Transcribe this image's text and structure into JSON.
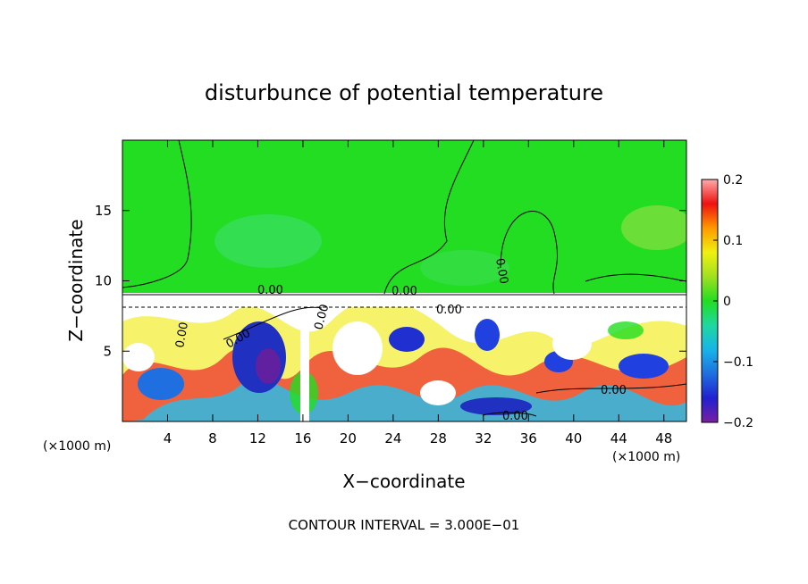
{
  "chart_data": {
    "type": "heatmap",
    "title": "disturbunce of potential temperature",
    "xlabel": "X−coordinate",
    "ylabel": "Z−coordinate",
    "x_unit_left": "(×1000 m)",
    "x_unit_right": "(×1000 m)",
    "xlim": [
      0,
      50
    ],
    "ylim": [
      0,
      20
    ],
    "x_ticks": [
      "4",
      "8",
      "12",
      "16",
      "20",
      "24",
      "28",
      "32",
      "36",
      "40",
      "44",
      "48"
    ],
    "y_ticks": [
      "5",
      "10",
      "15"
    ],
    "colorbar": {
      "range": [
        -0.2,
        0.2
      ],
      "tick_labels": [
        "0.2",
        "0.1",
        "0",
        "−0.1",
        "−0.2"
      ]
    },
    "contour_labels": [
      "0.00",
      "0.00",
      "0.00",
      "0.00",
      "0.00",
      "0.00",
      "0.00",
      "0.00",
      "0.00"
    ],
    "footnote": "CONTOUR INTERVAL = 3.000E−01"
  }
}
